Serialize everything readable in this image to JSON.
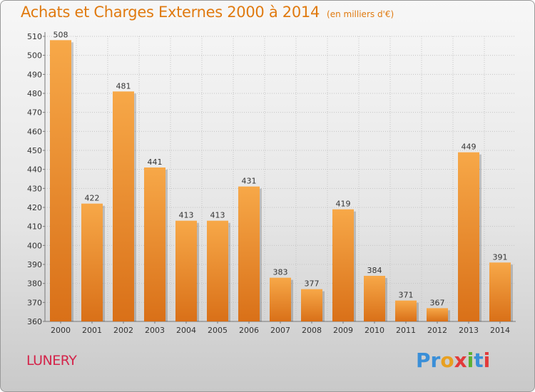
{
  "title": "Achats et Charges Externes 2000 à 2014",
  "subtitle": "(en milliers d'€)",
  "commune": "LUNERY",
  "logo": {
    "text": "Proxiti",
    "letter_colors": [
      "#3a8fd8",
      "#3a8fd8",
      "#e8a020",
      "#e23a3a",
      "#5ab030",
      "#3a8fd8",
      "#e23a3a"
    ]
  },
  "colors": {
    "bar_light": "#f7a848",
    "bar_dark": "#d97018",
    "title": "#e07a10",
    "commune": "#d4244a"
  },
  "chart_data": {
    "type": "bar",
    "categories": [
      "2000",
      "2001",
      "2002",
      "2003",
      "2004",
      "2005",
      "2006",
      "2007",
      "2008",
      "2009",
      "2010",
      "2011",
      "2012",
      "2013",
      "2014"
    ],
    "values": [
      508,
      422,
      481,
      441,
      413,
      413,
      431,
      383,
      377,
      419,
      384,
      371,
      367,
      449,
      391
    ],
    "ylim": [
      360,
      510
    ],
    "yticks": [
      360,
      370,
      380,
      390,
      400,
      410,
      420,
      430,
      440,
      450,
      460,
      470,
      480,
      490,
      500,
      510
    ],
    "grid": true,
    "title": "Achats et Charges Externes 2000 à 2014",
    "subtitle": "(en milliers d'€)"
  }
}
